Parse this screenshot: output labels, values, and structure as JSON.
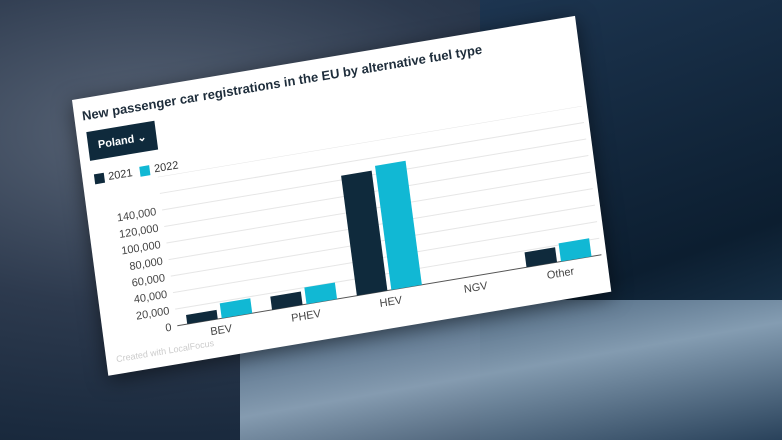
{
  "chart_data": {
    "type": "bar",
    "title": "New passenger car registrations in the EU by alternative fuel type",
    "selector": "Poland",
    "categories": [
      "BEV",
      "PHEV",
      "HEV",
      "NGV",
      "Other"
    ],
    "series": [
      {
        "name": "2021",
        "color": "#0f2a3c",
        "values": [
          11000,
          16000,
          145000,
          0,
          18000
        ]
      },
      {
        "name": "2022",
        "color": "#11b8d4",
        "values": [
          18000,
          20000,
          150000,
          0,
          22000
        ]
      }
    ],
    "yticks": [
      "0",
      "20,000",
      "40,000",
      "60,000",
      "80,000",
      "100,000",
      "120,000",
      "140,000"
    ],
    "ylim": [
      0,
      180000
    ],
    "grid": true,
    "legend": "top-left",
    "credit": "Created with LocalFocus"
  }
}
